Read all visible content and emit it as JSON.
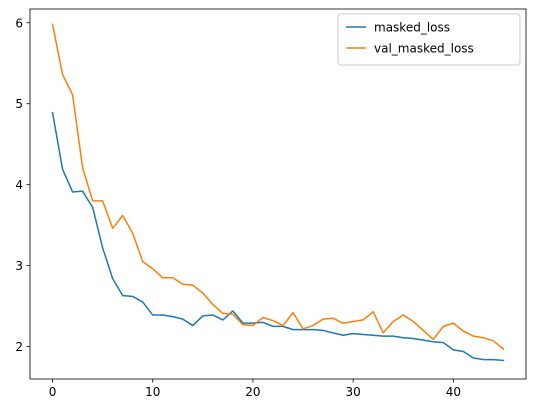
{
  "chart_data": {
    "type": "line",
    "title": "",
    "xlabel": "",
    "ylabel": "",
    "xlim": [
      -2.25,
      47.25
    ],
    "ylim": [
      1.6,
      6.17
    ],
    "xticks": [
      0,
      10,
      20,
      30,
      40
    ],
    "yticks": [
      2,
      3,
      4,
      5,
      6
    ],
    "grid": false,
    "legend_position": "top-right",
    "x": [
      0,
      1,
      2,
      3,
      4,
      5,
      6,
      7,
      8,
      9,
      10,
      11,
      12,
      13,
      14,
      15,
      16,
      17,
      18,
      19,
      20,
      21,
      22,
      23,
      24,
      25,
      26,
      27,
      28,
      29,
      30,
      31,
      32,
      33,
      34,
      35,
      36,
      37,
      38,
      39,
      40,
      41,
      42,
      43,
      44,
      45
    ],
    "series": [
      {
        "name": "masked_loss",
        "color": "#1f77b4",
        "values": [
          4.89,
          4.19,
          3.91,
          3.92,
          3.72,
          3.22,
          2.84,
          2.63,
          2.62,
          2.55,
          2.39,
          2.39,
          2.37,
          2.34,
          2.26,
          2.38,
          2.39,
          2.33,
          2.44,
          2.29,
          2.29,
          2.3,
          2.25,
          2.25,
          2.21,
          2.21,
          2.21,
          2.2,
          2.17,
          2.14,
          2.16,
          2.15,
          2.14,
          2.13,
          2.13,
          2.11,
          2.1,
          2.08,
          2.06,
          2.05,
          1.96,
          1.94,
          1.86,
          1.84,
          1.84,
          1.83
        ]
      },
      {
        "name": "val_masked_loss",
        "color": "#ff7f0e",
        "values": [
          5.98,
          5.36,
          5.11,
          4.21,
          3.8,
          3.8,
          3.46,
          3.62,
          3.4,
          3.05,
          2.96,
          2.85,
          2.85,
          2.77,
          2.76,
          2.66,
          2.52,
          2.41,
          2.4,
          2.27,
          2.26,
          2.36,
          2.32,
          2.26,
          2.42,
          2.22,
          2.26,
          2.34,
          2.35,
          2.29,
          2.31,
          2.33,
          2.43,
          2.17,
          2.31,
          2.39,
          2.31,
          2.2,
          2.09,
          2.25,
          2.29,
          2.19,
          2.13,
          2.11,
          2.07,
          1.97
        ]
      }
    ]
  }
}
